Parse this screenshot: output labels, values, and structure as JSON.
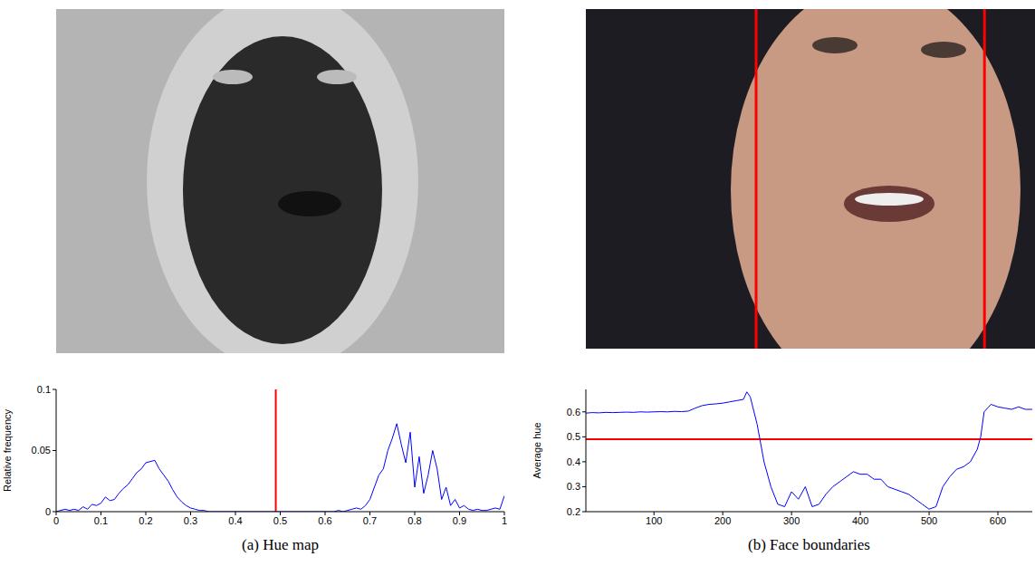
{
  "chart_data": [
    {
      "type": "line",
      "caption": "(a) Hue map",
      "y_label": "Relative frequency",
      "x": [
        0,
        0.01,
        0.02,
        0.03,
        0.04,
        0.05,
        0.06,
        0.07,
        0.08,
        0.09,
        0.1,
        0.11,
        0.12,
        0.13,
        0.14,
        0.15,
        0.16,
        0.17,
        0.18,
        0.19,
        0.2,
        0.21,
        0.22,
        0.23,
        0.24,
        0.25,
        0.26,
        0.27,
        0.28,
        0.29,
        0.3,
        0.31,
        0.32,
        0.33,
        0.34,
        0.35,
        0.36,
        0.37,
        0.38,
        0.39,
        0.4,
        0.41,
        0.42,
        0.43,
        0.44,
        0.45,
        0.46,
        0.47,
        0.48,
        0.49,
        0.5,
        0.51,
        0.52,
        0.53,
        0.54,
        0.55,
        0.56,
        0.57,
        0.58,
        0.59,
        0.6,
        0.61,
        0.62,
        0.63,
        0.64,
        0.65,
        0.66,
        0.67,
        0.68,
        0.69,
        0.7,
        0.71,
        0.72,
        0.73,
        0.74,
        0.75,
        0.76,
        0.77,
        0.78,
        0.79,
        0.8,
        0.81,
        0.82,
        0.83,
        0.84,
        0.85,
        0.86,
        0.87,
        0.88,
        0.89,
        0.9,
        0.91,
        0.92,
        0.93,
        0.94,
        0.95,
        0.96,
        0.97,
        0.98,
        0.99,
        1
      ],
      "values": [
        0,
        0.001,
        0.002,
        0.001,
        0.002,
        0.001,
        0.004,
        0.002,
        0.006,
        0.005,
        0.007,
        0.012,
        0.009,
        0.01,
        0.015,
        0.019,
        0.022,
        0.027,
        0.032,
        0.035,
        0.04,
        0.041,
        0.042,
        0.035,
        0.03,
        0.025,
        0.018,
        0.012,
        0.008,
        0.005,
        0.003,
        0.002,
        0.001,
        0.001,
        0,
        0,
        0,
        0,
        0,
        0,
        0,
        0,
        0,
        0,
        0,
        0,
        0,
        0,
        0,
        0,
        0,
        0,
        0,
        0,
        0,
        0,
        0,
        0,
        0,
        0,
        0,
        0,
        0,
        0.001,
        0,
        0.001,
        0.002,
        0.003,
        0.002,
        0.005,
        0.01,
        0.02,
        0.03,
        0.035,
        0.05,
        0.06,
        0.072,
        0.055,
        0.04,
        0.065,
        0.02,
        0.045,
        0.015,
        0.03,
        0.05,
        0.035,
        0.01,
        0.02,
        0.005,
        0.01,
        0.003,
        0.005,
        0.002,
        0.001,
        0.002,
        0.001,
        0.001,
        0.002,
        0.003,
        0.002,
        0.013
      ],
      "color": "#0000ff",
      "threshold": 0.49,
      "xlim": [
        0,
        1
      ],
      "xticks": [
        0,
        0.1,
        0.2,
        0.3,
        0.4,
        0.5,
        0.6,
        0.7,
        0.8,
        0.9,
        1
      ],
      "ylim": [
        0,
        0.1
      ],
      "yticks": [
        0,
        0.05,
        0.1
      ]
    },
    {
      "type": "line",
      "caption": "(b) Face boundaries",
      "y_label": "Average hue",
      "x": [
        1,
        10,
        20,
        30,
        40,
        50,
        60,
        70,
        80,
        90,
        100,
        110,
        120,
        130,
        140,
        150,
        160,
        170,
        180,
        190,
        200,
        210,
        220,
        230,
        235,
        240,
        250,
        260,
        270,
        280,
        290,
        300,
        310,
        320,
        330,
        340,
        350,
        360,
        370,
        380,
        390,
        400,
        410,
        420,
        430,
        440,
        450,
        460,
        470,
        480,
        490,
        500,
        510,
        520,
        530,
        540,
        550,
        560,
        570,
        575,
        580,
        590,
        600,
        610,
        620,
        630,
        640,
        650
      ],
      "values": [
        0.595,
        0.597,
        0.596,
        0.598,
        0.597,
        0.598,
        0.599,
        0.598,
        0.6,
        0.599,
        0.6,
        0.601,
        0.6,
        0.602,
        0.601,
        0.603,
        0.615,
        0.625,
        0.63,
        0.632,
        0.635,
        0.64,
        0.645,
        0.65,
        0.68,
        0.66,
        0.55,
        0.4,
        0.3,
        0.23,
        0.22,
        0.28,
        0.25,
        0.3,
        0.22,
        0.23,
        0.27,
        0.3,
        0.32,
        0.34,
        0.36,
        0.35,
        0.35,
        0.33,
        0.33,
        0.3,
        0.29,
        0.28,
        0.27,
        0.25,
        0.23,
        0.21,
        0.22,
        0.3,
        0.34,
        0.37,
        0.38,
        0.4,
        0.45,
        0.5,
        0.6,
        0.63,
        0.62,
        0.615,
        0.61,
        0.62,
        0.61,
        0.61
      ],
      "color": "#0000ff",
      "threshold": 0.49,
      "face_boundaries": [
        247,
        577
      ],
      "xlim": [
        1,
        650
      ],
      "xticks": [
        100,
        200,
        300,
        400,
        500,
        600
      ],
      "ylim": [
        0.2,
        0.69
      ],
      "yticks": [
        0.2,
        0.3,
        0.4,
        0.5,
        0.6
      ]
    }
  ]
}
